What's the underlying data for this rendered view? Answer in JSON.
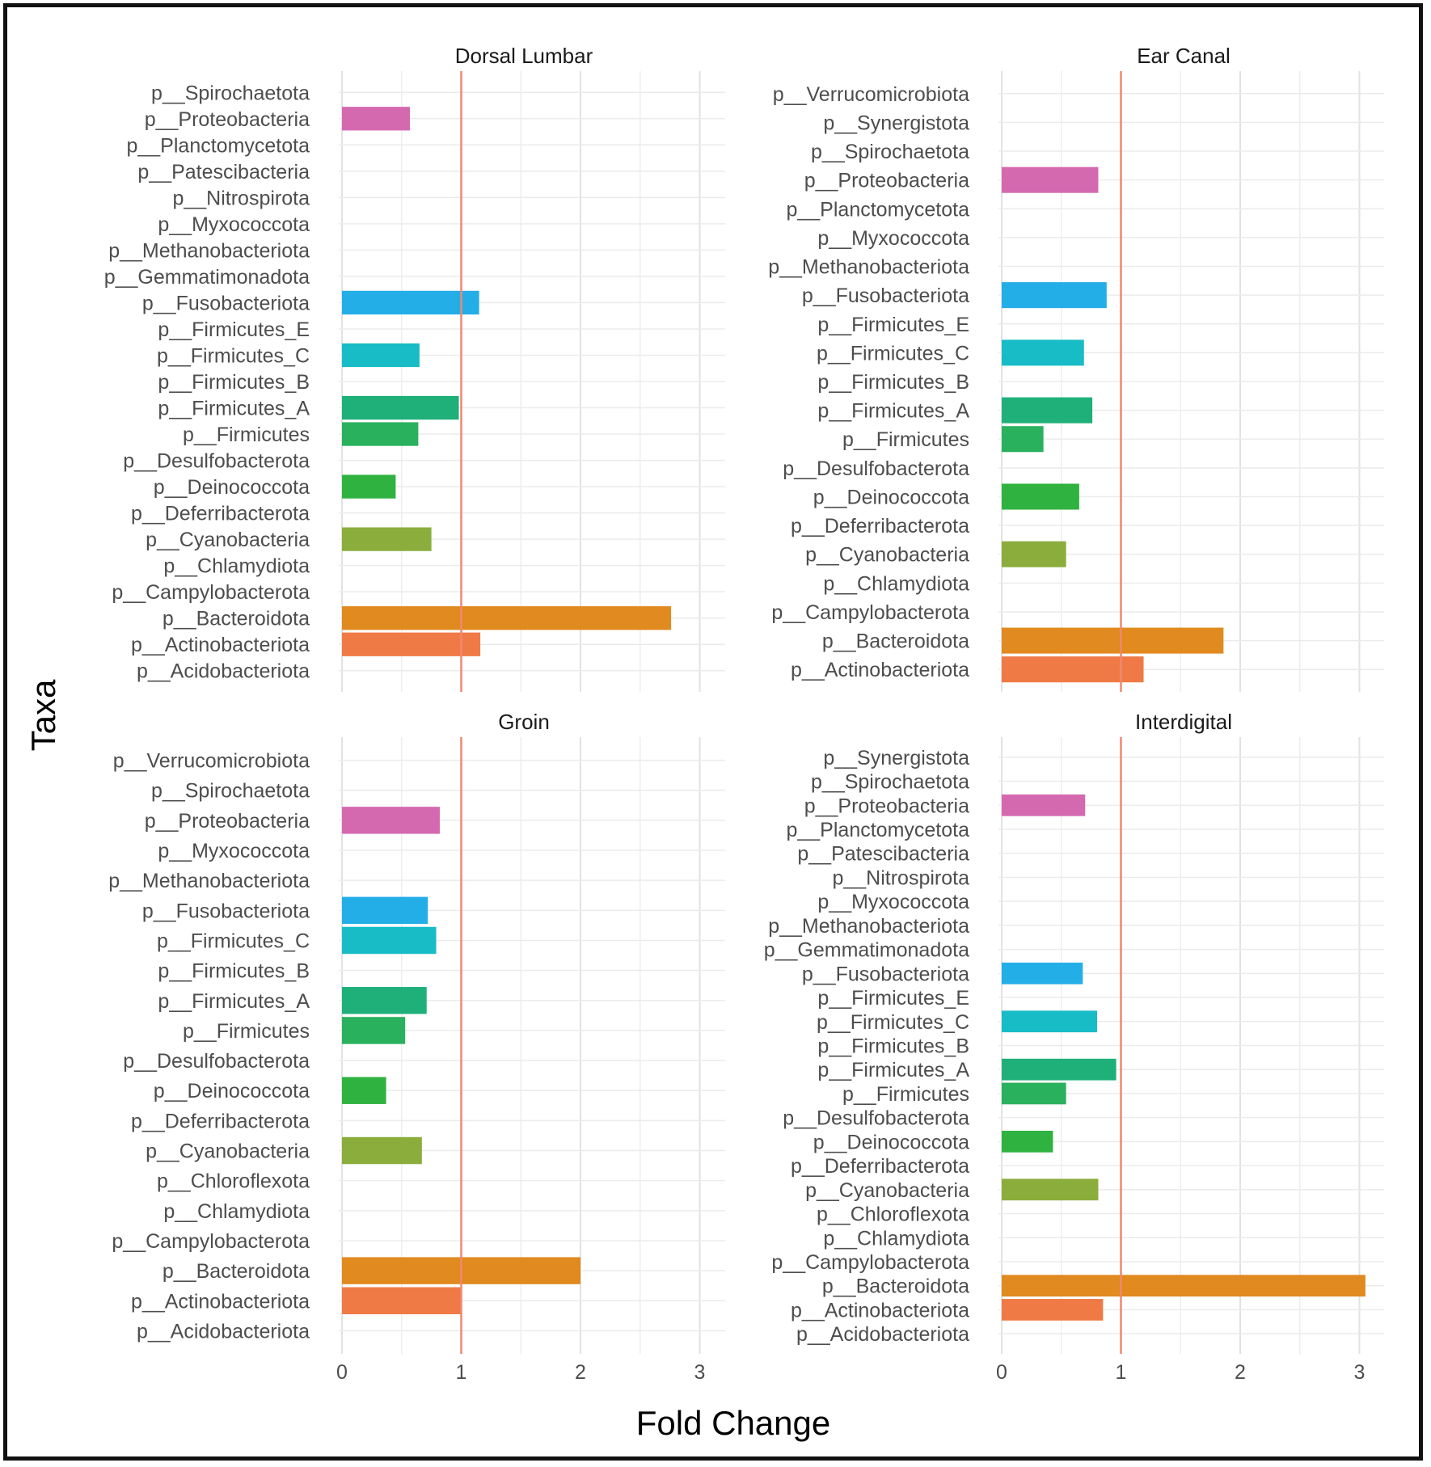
{
  "chart_data": {
    "type": "bar",
    "orientation": "horizontal",
    "xlabel": "Fold Change",
    "ylabel": "Taxa",
    "xlim": [
      0,
      3.2
    ],
    "xticks": [
      "0",
      "1",
      "2",
      "3"
    ],
    "reference_line": 1,
    "grid": true,
    "colors": {
      "p__Proteobacteria": "#d469b0",
      "p__Fusobacteriota": "#23aee8",
      "p__Firmicutes_C": "#17bcc7",
      "p__Firmicutes_A": "#1fb07a",
      "p__Firmicutes": "#29b15d",
      "p__Deinococcota": "#2fb240",
      "p__Cyanobacteria": "#8aad3c",
      "p__Bacteroidota": "#e08a1f",
      "p__Actinobacteriota": "#f07a45",
      "reference_line": "#f08870"
    },
    "panels": [
      {
        "title": "Dorsal Lumbar",
        "taxa": [
          "p__Spirochaetota",
          "p__Proteobacteria",
          "p__Planctomycetota",
          "p__Patescibacteria",
          "p__Nitrospirota",
          "p__Myxococcota",
          "p__Methanobacteriota",
          "p__Gemmatimonadota",
          "p__Fusobacteriota",
          "p__Firmicutes_E",
          "p__Firmicutes_C",
          "p__Firmicutes_B",
          "p__Firmicutes_A",
          "p__Firmicutes",
          "p__Desulfobacterota",
          "p__Deinococcota",
          "p__Deferribacterota",
          "p__Cyanobacteria",
          "p__Chlamydiota",
          "p__Campylobacterota",
          "p__Bacteroidota",
          "p__Actinobacteriota",
          "p__Acidobacteriota"
        ],
        "values": [
          0,
          0.57,
          0,
          0,
          0,
          0,
          0,
          0,
          1.15,
          0,
          0.65,
          0,
          0.98,
          0.64,
          0,
          0.45,
          0,
          0.75,
          0,
          0,
          2.76,
          1.16,
          0
        ]
      },
      {
        "title": "Ear Canal",
        "taxa": [
          "p__Verrucomicrobiota",
          "p__Synergistota",
          "p__Spirochaetota",
          "p__Proteobacteria",
          "p__Planctomycetota",
          "p__Myxococcota",
          "p__Methanobacteriota",
          "p__Fusobacteriota",
          "p__Firmicutes_E",
          "p__Firmicutes_C",
          "p__Firmicutes_B",
          "p__Firmicutes_A",
          "p__Firmicutes",
          "p__Desulfobacterota",
          "p__Deinococcota",
          "p__Deferribacterota",
          "p__Cyanobacteria",
          "p__Chlamydiota",
          "p__Campylobacterota",
          "p__Bacteroidota",
          "p__Actinobacteriota"
        ],
        "values": [
          0,
          0,
          0,
          0.81,
          0,
          0,
          0,
          0.88,
          0,
          0.69,
          0,
          0.76,
          0.35,
          0,
          0.65,
          0,
          0.54,
          0,
          0,
          1.86,
          1.19
        ]
      },
      {
        "title": "Groin",
        "taxa": [
          "p__Verrucomicrobiota",
          "p__Spirochaetota",
          "p__Proteobacteria",
          "p__Myxococcota",
          "p__Methanobacteriota",
          "p__Fusobacteriota",
          "p__Firmicutes_C",
          "p__Firmicutes_B",
          "p__Firmicutes_A",
          "p__Firmicutes",
          "p__Desulfobacterota",
          "p__Deinococcota",
          "p__Deferribacterota",
          "p__Cyanobacteria",
          "p__Chloroflexota",
          "p__Chlamydiota",
          "p__Campylobacterota",
          "p__Bacteroidota",
          "p__Actinobacteriota",
          "p__Acidobacteriota"
        ],
        "values": [
          0,
          0,
          0.82,
          0,
          0,
          0.72,
          0.79,
          0,
          0.71,
          0.53,
          0,
          0.37,
          0,
          0.67,
          0,
          0,
          0,
          2.0,
          1.0,
          0
        ]
      },
      {
        "title": "Interdigital",
        "taxa": [
          "p__Synergistota",
          "p__Spirochaetota",
          "p__Proteobacteria",
          "p__Planctomycetota",
          "p__Patescibacteria",
          "p__Nitrospirota",
          "p__Myxococcota",
          "p__Methanobacteriota",
          "p__Gemmatimonadota",
          "p__Fusobacteriota",
          "p__Firmicutes_E",
          "p__Firmicutes_C",
          "p__Firmicutes_B",
          "p__Firmicutes_A",
          "p__Firmicutes",
          "p__Desulfobacterota",
          "p__Deinococcota",
          "p__Deferribacterota",
          "p__Cyanobacteria",
          "p__Chloroflexota",
          "p__Chlamydiota",
          "p__Campylobacterota",
          "p__Bacteroidota",
          "p__Actinobacteriota",
          "p__Acidobacteriota"
        ],
        "values": [
          0,
          0,
          0.7,
          0,
          0,
          0,
          0,
          0,
          0,
          0.68,
          0,
          0.8,
          0,
          0.96,
          0.54,
          0,
          0.43,
          0,
          0.81,
          0,
          0,
          0,
          3.05,
          0.85,
          0
        ]
      }
    ]
  }
}
